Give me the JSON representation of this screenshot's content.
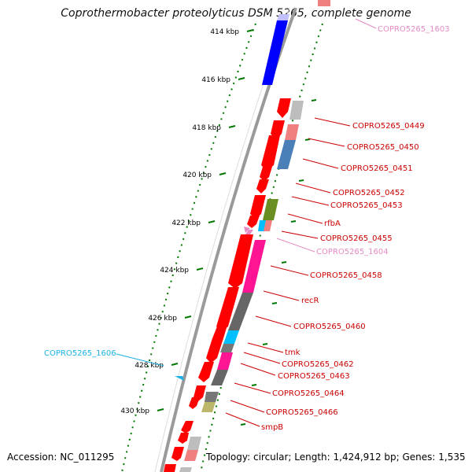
{
  "title": "Coprothermobacter proteolyticus DSM 5265, complete genome",
  "footer": {
    "accession": "Accession: NC_011295",
    "topology": "Topology: circular; Length: 1,424,912 bp; Genes: 1,535"
  },
  "ruler": [
    {
      "label": "414 kbp"
    },
    {
      "label": "416 kbp"
    },
    {
      "label": "418 kbp"
    },
    {
      "label": "420 kbp"
    },
    {
      "label": "422 kbp"
    },
    {
      "label": "424 kbp"
    },
    {
      "label": "426 kbp"
    },
    {
      "label": "428 kbp"
    },
    {
      "label": "430 kbp"
    }
  ],
  "gene_labels": [
    {
      "text": "COPRO5265_1603",
      "color": "#e78ac3"
    },
    {
      "text": "COPRO5265_0449",
      "color": "#cc0000"
    },
    {
      "text": "COPRO5265_0450",
      "color": "#cc0000"
    },
    {
      "text": "COPRO5265_0451",
      "color": "#cc0000"
    },
    {
      "text": "COPRO5265_0452",
      "color": "#cc0000"
    },
    {
      "text": "COPRO5265_0453",
      "color": "#cc0000"
    },
    {
      "text": "rfbA",
      "color": "#cc0000"
    },
    {
      "text": "COPRO5265_0455",
      "color": "#cc0000"
    },
    {
      "text": "COPRO5265_1604",
      "color": "#e78ac3"
    },
    {
      "text": "COPRO5265_0458",
      "color": "#cc0000"
    },
    {
      "text": "recR",
      "color": "#cc0000"
    },
    {
      "text": "COPRO5265_0460",
      "color": "#cc0000"
    },
    {
      "text": "tmk",
      "color": "#cc0000"
    },
    {
      "text": "COPRO5265_0462",
      "color": "#cc0000"
    },
    {
      "text": "COPRO5265_0463",
      "color": "#cc0000"
    },
    {
      "text": "COPRO5265_0464",
      "color": "#cc0000"
    },
    {
      "text": "COPRO5265_0466",
      "color": "#cc0000"
    },
    {
      "text": "smpB",
      "color": "#cc0000"
    },
    {
      "text": "COPRO5265_1606",
      "color": "#1ab2e6"
    }
  ],
  "colors": {
    "cds": "#ff0000",
    "backbone": "#888888",
    "ruler": "#007700"
  }
}
